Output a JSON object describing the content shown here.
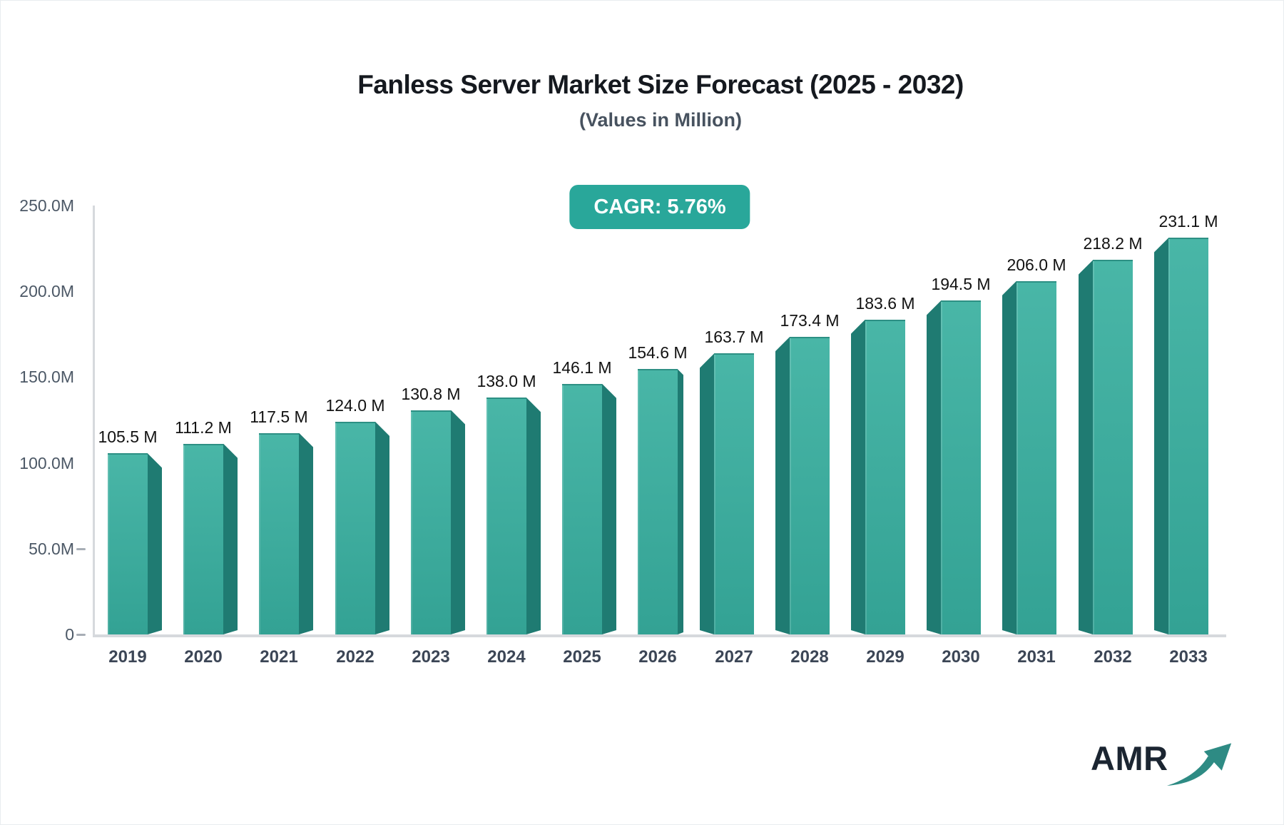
{
  "title": "Fanless Server Market Size Forecast (2025 - 2032)",
  "subtitle": "(Values in Million)",
  "badge": {
    "label": "CAGR: 5.76%",
    "bg": "#29a79a",
    "text_color": "#ffffff"
  },
  "chart_data": {
    "type": "bar",
    "title": "Fanless Server Market Size Forecast (2025 - 2032)",
    "subtitle": "(Values in Million)",
    "unit": "M",
    "categories": [
      "2019",
      "2020",
      "2021",
      "2022",
      "2023",
      "2024",
      "2025",
      "2026",
      "2027",
      "2028",
      "2029",
      "2030",
      "2031",
      "2032",
      "2033"
    ],
    "values": [
      105.5,
      111.2,
      117.5,
      124.0,
      130.8,
      138.0,
      146.1,
      154.6,
      163.7,
      173.4,
      183.6,
      194.5,
      206.0,
      218.2,
      231.1
    ],
    "value_labels": [
      "105.5 M",
      "111.2 M",
      "117.5 M",
      "124.0 M",
      "130.8 M",
      "138.0 M",
      "146.1 M",
      "154.6 M",
      "163.7 M",
      "173.4 M",
      "183.6 M",
      "194.5 M",
      "206.0 M",
      "218.2 M",
      "231.1 M"
    ],
    "y_ticks": [
      {
        "label": "250.0M",
        "value": 250,
        "dash": false
      },
      {
        "label": "200.0M",
        "value": 200,
        "dash": false
      },
      {
        "label": "150.0M",
        "value": 150,
        "dash": false
      },
      {
        "label": "100.0M",
        "value": 100,
        "dash": false
      },
      {
        "label": "50.0M",
        "value": 50,
        "dash": true
      },
      {
        "label": "0",
        "value": 0,
        "dash": true
      }
    ],
    "ylim": [
      0,
      250
    ],
    "cagr": "CAGR: 5.76%",
    "legend": false,
    "grid": false,
    "colors": {
      "bar_front_top": "#49b6a7",
      "bar_front_bottom": "#33a294",
      "bar_side": "#1f7b72",
      "axis": "#d6d9dd",
      "value_label": "#121212"
    }
  },
  "logo": {
    "text": "AMR",
    "color": "#1b2531",
    "arrow_color": "#2e8b84"
  }
}
